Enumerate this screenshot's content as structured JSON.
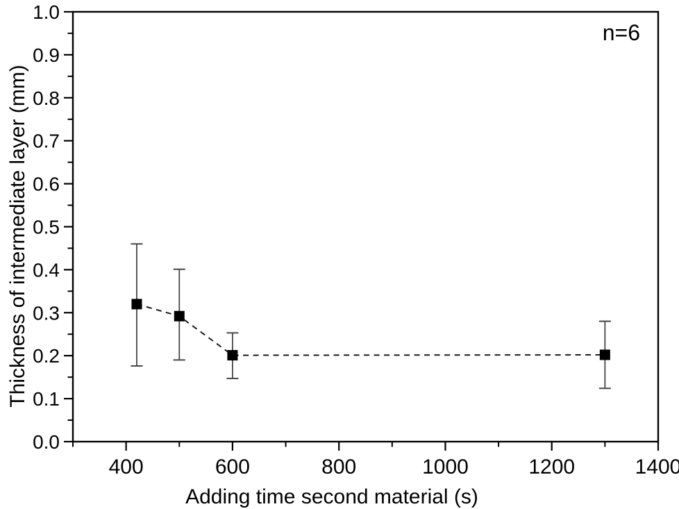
{
  "figure": {
    "background_color": "#ffffff",
    "foreground_color": "#000000",
    "error_bar_color": "#474747",
    "dash_line_color": "#1a1a1a"
  },
  "chart_data": {
    "type": "scatter",
    "title": "",
    "xlabel": "Adding time second material (s)",
    "ylabel": "Thickness of intermediate layer (mm)",
    "annotation": "n=6",
    "xlim": [
      300,
      1400
    ],
    "ylim": [
      0.0,
      1.0
    ],
    "grid": false,
    "legend": false,
    "x_major_ticks": [
      400,
      600,
      800,
      1000,
      1200,
      1400
    ],
    "x_tick_labels": [
      "400",
      "600",
      "800",
      "1000",
      "1200",
      "1400"
    ],
    "x_minor_ticks": [
      300,
      500,
      700,
      900,
      1100,
      1300
    ],
    "y_major_ticks": [
      0.0,
      0.1,
      0.2,
      0.3,
      0.4,
      0.5,
      0.6,
      0.7,
      0.8,
      0.9,
      1.0
    ],
    "y_tick_labels": [
      "0.0",
      "0.1",
      "0.2",
      "0.3",
      "0.4",
      "0.5",
      "0.6",
      "0.7",
      "0.8",
      "0.9",
      "1.0"
    ],
    "y_minor_ticks": [
      0.05,
      0.15,
      0.25,
      0.35,
      0.45,
      0.55,
      0.65,
      0.75,
      0.85,
      0.95
    ],
    "series": [
      {
        "name": "Thickness of intermediate layer",
        "marker": "filled-square",
        "line_style": "dashed",
        "color": "#000000",
        "points": [
          {
            "x": 420,
            "y": 0.32,
            "y_err_low": 0.176,
            "y_err_high": 0.46
          },
          {
            "x": 500,
            "y": 0.292,
            "y_err_low": 0.19,
            "y_err_high": 0.401
          },
          {
            "x": 600,
            "y": 0.201,
            "y_err_low": 0.147,
            "y_err_high": 0.253
          },
          {
            "x": 1300,
            "y": 0.202,
            "y_err_low": 0.124,
            "y_err_high": 0.28
          }
        ]
      }
    ]
  }
}
